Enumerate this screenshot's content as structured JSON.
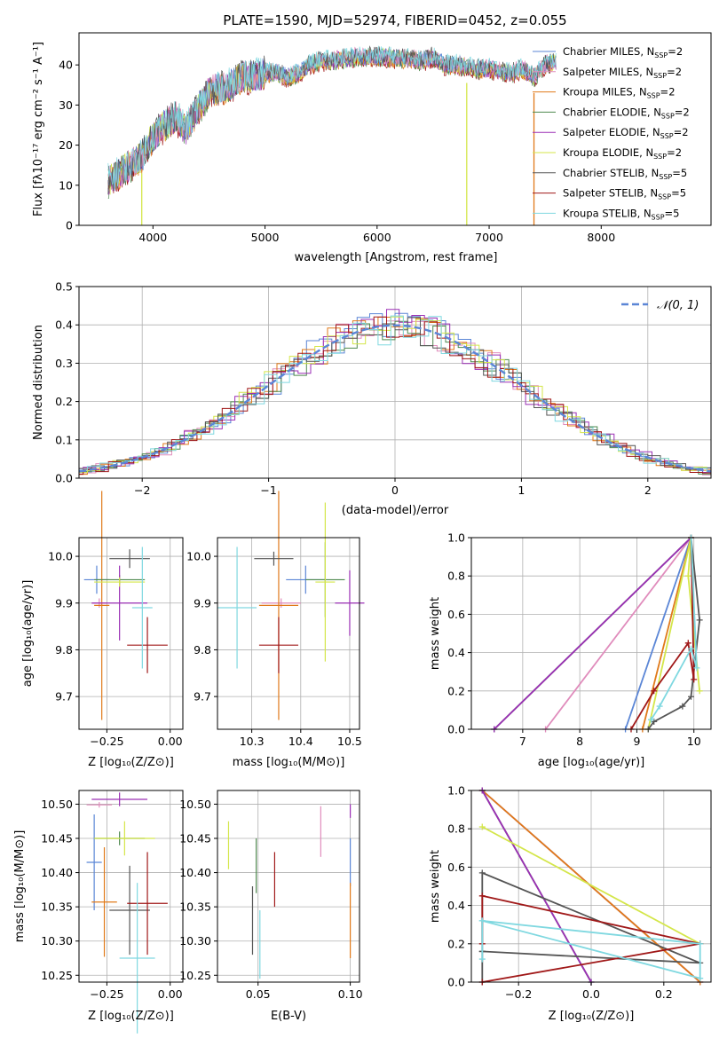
{
  "colors": {
    "Chabrier MILES": "#5b86d6",
    "Salpeter MILES": "#e08cbc",
    "Kroupa MILES": "#e07a1a",
    "Chabrier ELODIE": "#4f8a4f",
    "Salpeter ELODIE": "#9b2fb5",
    "Kroupa ELODIE": "#d4e64a",
    "Chabrier STELIB": "#555555",
    "Salpeter STELIB": "#a01818",
    "Kroupa STELIB": "#7fd8e0"
  },
  "chart_data": [
    {
      "id": "spectrum",
      "type": "line",
      "title": "PLATE=1590, MJD=52974, FIBERID=0452, z=0.055",
      "xlabel": "wavelength [Angstrom, rest frame]",
      "ylabel": "Flux [fλ10⁻¹⁷ erg cm⁻² s⁻¹ A⁻¹]",
      "xlim": [
        3340,
        8980
      ],
      "ylim": [
        0,
        48
      ],
      "xticks": [
        "4000",
        "5000",
        "6000",
        "7000",
        "8000"
      ],
      "yticks": [
        "0",
        "10",
        "20",
        "30",
        "40"
      ],
      "legend_position": "right",
      "legend": [
        {
          "name": "Chabrier MILES",
          "nssp": "2"
        },
        {
          "name": "Salpeter MILES",
          "nssp": "2"
        },
        {
          "name": "Kroupa MILES",
          "nssp": "2"
        },
        {
          "name": "Chabrier ELODIE",
          "nssp": "2"
        },
        {
          "name": "Salpeter ELODIE",
          "nssp": "2"
        },
        {
          "name": "Kroupa ELODIE",
          "nssp": "2"
        },
        {
          "name": "Chabrier STELIB",
          "nssp": "5"
        },
        {
          "name": "Salpeter STELIB",
          "nssp": "5"
        },
        {
          "name": "Kroupa STELIB",
          "nssp": "5"
        }
      ],
      "legend_prefix": "N",
      "legend_sub": "SSP",
      "continuum": {
        "x": [
          3600,
          3700,
          3800,
          3900,
          4000,
          4100,
          4200,
          4300,
          4400,
          4500,
          4600,
          4700,
          4800,
          4900,
          5000,
          5100,
          5200,
          5300,
          5400,
          5500,
          5600,
          5700,
          5800,
          5900,
          6000,
          6100,
          6200,
          6300,
          6400,
          6500,
          6600,
          6700,
          6800,
          6900,
          7000,
          7100,
          7200,
          7300,
          7400,
          7500,
          7600
        ],
        "y": [
          11,
          13,
          15,
          17,
          22,
          25,
          27,
          24,
          29,
          33,
          34,
          35,
          37,
          37,
          38,
          38,
          37,
          38,
          40,
          41,
          41,
          41.5,
          42,
          42,
          42,
          42,
          41.5,
          41.5,
          41,
          42,
          40,
          40,
          39.5,
          39,
          39,
          38.5,
          38,
          39,
          37,
          40,
          41
        ]
      },
      "dropouts": [
        {
          "x": 3900,
          "color": "#d4e64a"
        },
        {
          "x": 6800,
          "color": "#d4e64a"
        },
        {
          "x": 7400,
          "color": "#e07a1a"
        }
      ]
    },
    {
      "id": "residuals",
      "type": "histogram",
      "xlabel": "(data-model)/error",
      "ylabel": "Normed distribution",
      "xlim": [
        -2.5,
        2.5
      ],
      "ylim": [
        0,
        0.5
      ],
      "xticks": [
        "−2",
        "−1",
        "0",
        "1",
        "2"
      ],
      "yticks": [
        "0.0",
        "0.1",
        "0.2",
        "0.3",
        "0.4",
        "0.5"
      ],
      "grid": true,
      "legend_position": "top-right",
      "legend": "𝒩(0, 1)",
      "bin_width": 0.1,
      "gaussian": {
        "name": "𝒩(0, 1)",
        "mean": 0,
        "sigma": 1,
        "color": "#5b86d6"
      }
    },
    {
      "id": "age-vs-Z",
      "type": "errorbar",
      "xlabel": "Z [log₁₀(Z/Z⊙)]",
      "ylabel": "age  [log₁₀(age/yr)]",
      "xlim": [
        -0.36,
        0.05
      ],
      "ylim": [
        9.63,
        10.04
      ],
      "xticks": [
        "−0.25",
        "0.00"
      ],
      "yticks": [
        "9.7",
        "9.8",
        "9.9",
        "10.0"
      ],
      "grid": true,
      "points": [
        {
          "series": "Chabrier MILES",
          "x": -0.29,
          "y": 9.95,
          "xerr": 0.05,
          "yerr": 0.03
        },
        {
          "series": "Salpeter MILES",
          "x": -0.28,
          "y": 9.9,
          "xerr": 0.03,
          "yerr": 0.01
        },
        {
          "series": "Kroupa MILES",
          "x": -0.27,
          "y": 9.895,
          "xerr": 0.03,
          "yerr": 0.245
        },
        {
          "series": "Chabrier ELODIE",
          "x": -0.2,
          "y": 9.95,
          "xerr": 0.1,
          "yerr": 0.01
        },
        {
          "series": "Salpeter ELODIE",
          "x": -0.2,
          "y": 9.9,
          "xerr": 0.11,
          "yerr": 0.08
        },
        {
          "series": "Kroupa ELODIE",
          "x": -0.2,
          "y": 9.945,
          "xerr": 0.1,
          "yerr": 0.01
        },
        {
          "series": "Chabrier STELIB",
          "x": -0.16,
          "y": 9.995,
          "xerr": 0.08,
          "yerr": 0.02
        },
        {
          "series": "Salpeter STELIB",
          "x": -0.09,
          "y": 9.81,
          "xerr": 0.08,
          "yerr": 0.06
        },
        {
          "series": "Kroupa STELIB",
          "x": -0.11,
          "y": 9.89,
          "xerr": 0.04,
          "yerr": 0.13
        }
      ]
    },
    {
      "id": "age-vs-mass",
      "type": "errorbar",
      "xlabel": "mass [log₁₀(M/M⊙)]",
      "ylabel": "",
      "xlim": [
        10.23,
        10.52
      ],
      "ylim": [
        9.63,
        10.04
      ],
      "xticks": [
        "10.3",
        "10.4",
        "10.5"
      ],
      "yticks": [
        "9.7",
        "9.8",
        "9.9",
        "10.0"
      ],
      "grid": true,
      "points": [
        {
          "series": "Chabrier MILES",
          "x": 10.41,
          "y": 9.95,
          "xerr": 0.04,
          "yerr": 0.03
        },
        {
          "series": "Salpeter MILES",
          "x": 10.36,
          "y": 9.9,
          "xerr": 0.04,
          "yerr": 0.01
        },
        {
          "series": "Kroupa MILES",
          "x": 10.355,
          "y": 9.895,
          "xerr": 0.04,
          "yerr": 0.245
        },
        {
          "series": "Chabrier ELODIE",
          "x": 10.45,
          "y": 9.95,
          "xerr": 0.04,
          "yerr": 0.08
        },
        {
          "series": "Salpeter ELODIE",
          "x": 10.5,
          "y": 9.9,
          "xerr": 0.03,
          "yerr": 0.07
        },
        {
          "series": "Kroupa ELODIE",
          "x": 10.45,
          "y": 9.945,
          "xerr": 0.02,
          "yerr": 0.17
        },
        {
          "series": "Chabrier STELIB",
          "x": 10.345,
          "y": 9.995,
          "xerr": 0.04,
          "yerr": 0.015
        },
        {
          "series": "Salpeter STELIB",
          "x": 10.355,
          "y": 9.81,
          "xerr": 0.04,
          "yerr": 0.06
        },
        {
          "series": "Kroupa STELIB",
          "x": 10.27,
          "y": 9.89,
          "xerr": 0.04,
          "yerr": 0.13
        }
      ]
    },
    {
      "id": "cumulative-age",
      "type": "line",
      "xlabel": "age  [log₁₀(age/yr)]",
      "ylabel": "mass weight",
      "xlim": [
        6.1,
        10.3
      ],
      "ylim": [
        0,
        1
      ],
      "xticks": [
        "7",
        "8",
        "9",
        "10"
      ],
      "yticks": [
        "0.0",
        "0.2",
        "0.4",
        "0.6",
        "0.8",
        "1.0"
      ],
      "grid": true,
      "series": [
        {
          "name": "Chabrier MILES",
          "x": [
            8.8,
            9.95
          ],
          "y": [
            0,
            1
          ]
        },
        {
          "name": "Salpeter MILES",
          "x": [
            7.4,
            9.95
          ],
          "y": [
            0,
            1
          ]
        },
        {
          "name": "Kroupa MILES",
          "x": [
            9.1,
            9.95
          ],
          "y": [
            0,
            1
          ]
        },
        {
          "name": "Chabrier ELODIE",
          "x": [
            6.5,
            9.95
          ],
          "y": [
            0,
            1
          ]
        },
        {
          "name": "Salpeter ELODIE",
          "x": [
            6.5,
            9.95
          ],
          "y": [
            0,
            1
          ]
        },
        {
          "name": "Kroupa ELODIE",
          "x": [
            9.2,
            9.95,
            9.9,
            10.1
          ],
          "y": [
            0,
            1,
            0.8,
            0.2
          ]
        },
        {
          "name": "Chabrier STELIB",
          "x": [
            9.2,
            9.3,
            9.8,
            9.95,
            10.1,
            9.95
          ],
          "y": [
            0,
            0.04,
            0.12,
            0.17,
            0.57,
            1
          ]
        },
        {
          "name": "Salpeter STELIB",
          "x": [
            8.9,
            9.3,
            9.9,
            10.0,
            9.95
          ],
          "y": [
            0,
            0.2,
            0.45,
            0.26,
            1
          ]
        },
        {
          "name": "Kroupa STELIB",
          "x": [
            9.25,
            9.4,
            9.95,
            10.05,
            9.95
          ],
          "y": [
            0.05,
            0.12,
            0.42,
            0.32,
            1
          ]
        }
      ]
    },
    {
      "id": "mass-vs-Z",
      "type": "errorbar",
      "xlabel": "Z [log₁₀(Z/Z⊙)]",
      "ylabel": "mass [log₁₀(M/M⊙)]",
      "xlim": [
        -0.36,
        0.05
      ],
      "ylim": [
        10.24,
        10.52
      ],
      "xticks": [
        "−0.25",
        "0.00"
      ],
      "yticks": [
        "10.25",
        "10.30",
        "10.35",
        "10.40",
        "10.45",
        "10.50"
      ],
      "grid": true,
      "points": [
        {
          "series": "Chabrier MILES",
          "x": -0.3,
          "y": 10.415,
          "xerr": 0.03,
          "yerr": 0.07
        },
        {
          "series": "Salpeter MILES",
          "x": -0.28,
          "y": 10.499,
          "xerr": 0.05,
          "yerr": 0.004
        },
        {
          "series": "Kroupa MILES",
          "x": -0.26,
          "y": 10.357,
          "xerr": 0.05,
          "yerr": 0.08
        },
        {
          "series": "Chabrier ELODIE",
          "x": -0.2,
          "y": 10.45,
          "xerr": 0.1,
          "yerr": 0.01
        },
        {
          "series": "Salpeter ELODIE",
          "x": -0.2,
          "y": 10.507,
          "xerr": 0.11,
          "yerr": 0.01
        },
        {
          "series": "Kroupa ELODIE",
          "x": -0.18,
          "y": 10.45,
          "xerr": 0.12,
          "yerr": 0.025
        },
        {
          "series": "Chabrier STELIB",
          "x": -0.16,
          "y": 10.345,
          "xerr": 0.08,
          "yerr": 0.065
        },
        {
          "series": "Salpeter STELIB",
          "x": -0.09,
          "y": 10.355,
          "xerr": 0.08,
          "yerr": 0.075
        },
        {
          "series": "Kroupa STELIB",
          "x": -0.13,
          "y": 10.275,
          "xerr": 0.07,
          "yerr": 0.11
        }
      ]
    },
    {
      "id": "mass-vs-ebv",
      "type": "errorbar",
      "xlabel": "E(B-V)",
      "ylabel": "",
      "xlim": [
        0.028,
        0.105
      ],
      "ylim": [
        10.24,
        10.52
      ],
      "xticks": [
        "0.05",
        "0.10"
      ],
      "yticks": [
        "10.25",
        "10.30",
        "10.35",
        "10.40",
        "10.45",
        "10.50"
      ],
      "grid": true,
      "points": [
        {
          "series": "Chabrier MILES",
          "x": 0.1,
          "y": 10.415,
          "xerr": 0,
          "yerr": 0.035
        },
        {
          "series": "Salpeter MILES",
          "x": 0.084,
          "y": 10.46,
          "xerr": 0,
          "yerr": 0.037
        },
        {
          "series": "Kroupa MILES",
          "x": 0.1,
          "y": 10.33,
          "xerr": 0,
          "yerr": 0.055
        },
        {
          "series": "Chabrier ELODIE",
          "x": 0.049,
          "y": 10.41,
          "xerr": 0,
          "yerr": 0.04
        },
        {
          "series": "Salpeter ELODIE",
          "x": 0.1,
          "y": 10.49,
          "xerr": 0,
          "yerr": 0.01
        },
        {
          "series": "Kroupa ELODIE",
          "x": 0.034,
          "y": 10.44,
          "xerr": 0,
          "yerr": 0.035
        },
        {
          "series": "Chabrier STELIB",
          "x": 0.047,
          "y": 10.33,
          "xerr": 0,
          "yerr": 0.05
        },
        {
          "series": "Salpeter STELIB",
          "x": 0.059,
          "y": 10.39,
          "xerr": 0,
          "yerr": 0.04
        },
        {
          "series": "Kroupa STELIB",
          "x": 0.051,
          "y": 10.295,
          "xerr": 0,
          "yerr": 0.05
        }
      ]
    },
    {
      "id": "cumulative-Z",
      "type": "line",
      "xlabel": "Z [log₁₀(Z/Z⊙)]",
      "ylabel": "mass weight",
      "xlim": [
        -0.33,
        0.33
      ],
      "ylim": [
        0,
        1
      ],
      "xticks": [
        "−0.2",
        "0.0",
        "0.2"
      ],
      "yticks": [
        "0.0",
        "0.2",
        "0.4",
        "0.6",
        "0.8",
        "1.0"
      ],
      "grid": true,
      "series": [
        {
          "name": "Chabrier MILES",
          "x": [
            -0.3,
            0.3
          ],
          "y": [
            1.0,
            0.0
          ]
        },
        {
          "name": "Salpeter MILES",
          "x": [
            -0.3,
            0.3
          ],
          "y": [
            1.0,
            0.0
          ]
        },
        {
          "name": "Kroupa MILES",
          "x": [
            -0.3,
            0.3
          ],
          "y": [
            1.0,
            0.0
          ]
        },
        {
          "name": "Chabrier ELODIE",
          "x": [
            -0.3,
            0.0
          ],
          "y": [
            1.0,
            0.0
          ]
        },
        {
          "name": "Salpeter ELODIE",
          "x": [
            -0.3,
            0.0
          ],
          "y": [
            1.0,
            0.0
          ]
        },
        {
          "name": "Kroupa ELODIE",
          "x": [
            -0.3,
            0.3
          ],
          "y": [
            0.81,
            0.2
          ]
        },
        {
          "name": "Chabrier STELIB",
          "x": [
            -0.3,
            -0.3,
            0.3,
            -0.3,
            -0.3
          ],
          "y": [
            0.0,
            0.16,
            0.1,
            0.57,
            0.16
          ]
        },
        {
          "name": "Salpeter STELIB",
          "x": [
            -0.3,
            0.3,
            -0.3,
            -0.3
          ],
          "y": [
            0.0,
            0.2,
            0.45,
            0.2
          ]
        },
        {
          "name": "Kroupa STELIB",
          "x": [
            -0.3,
            0.3,
            0.3,
            -0.3,
            -0.3
          ],
          "y": [
            0.32,
            0.2,
            0.02,
            0.32,
            0.12
          ]
        }
      ]
    }
  ]
}
